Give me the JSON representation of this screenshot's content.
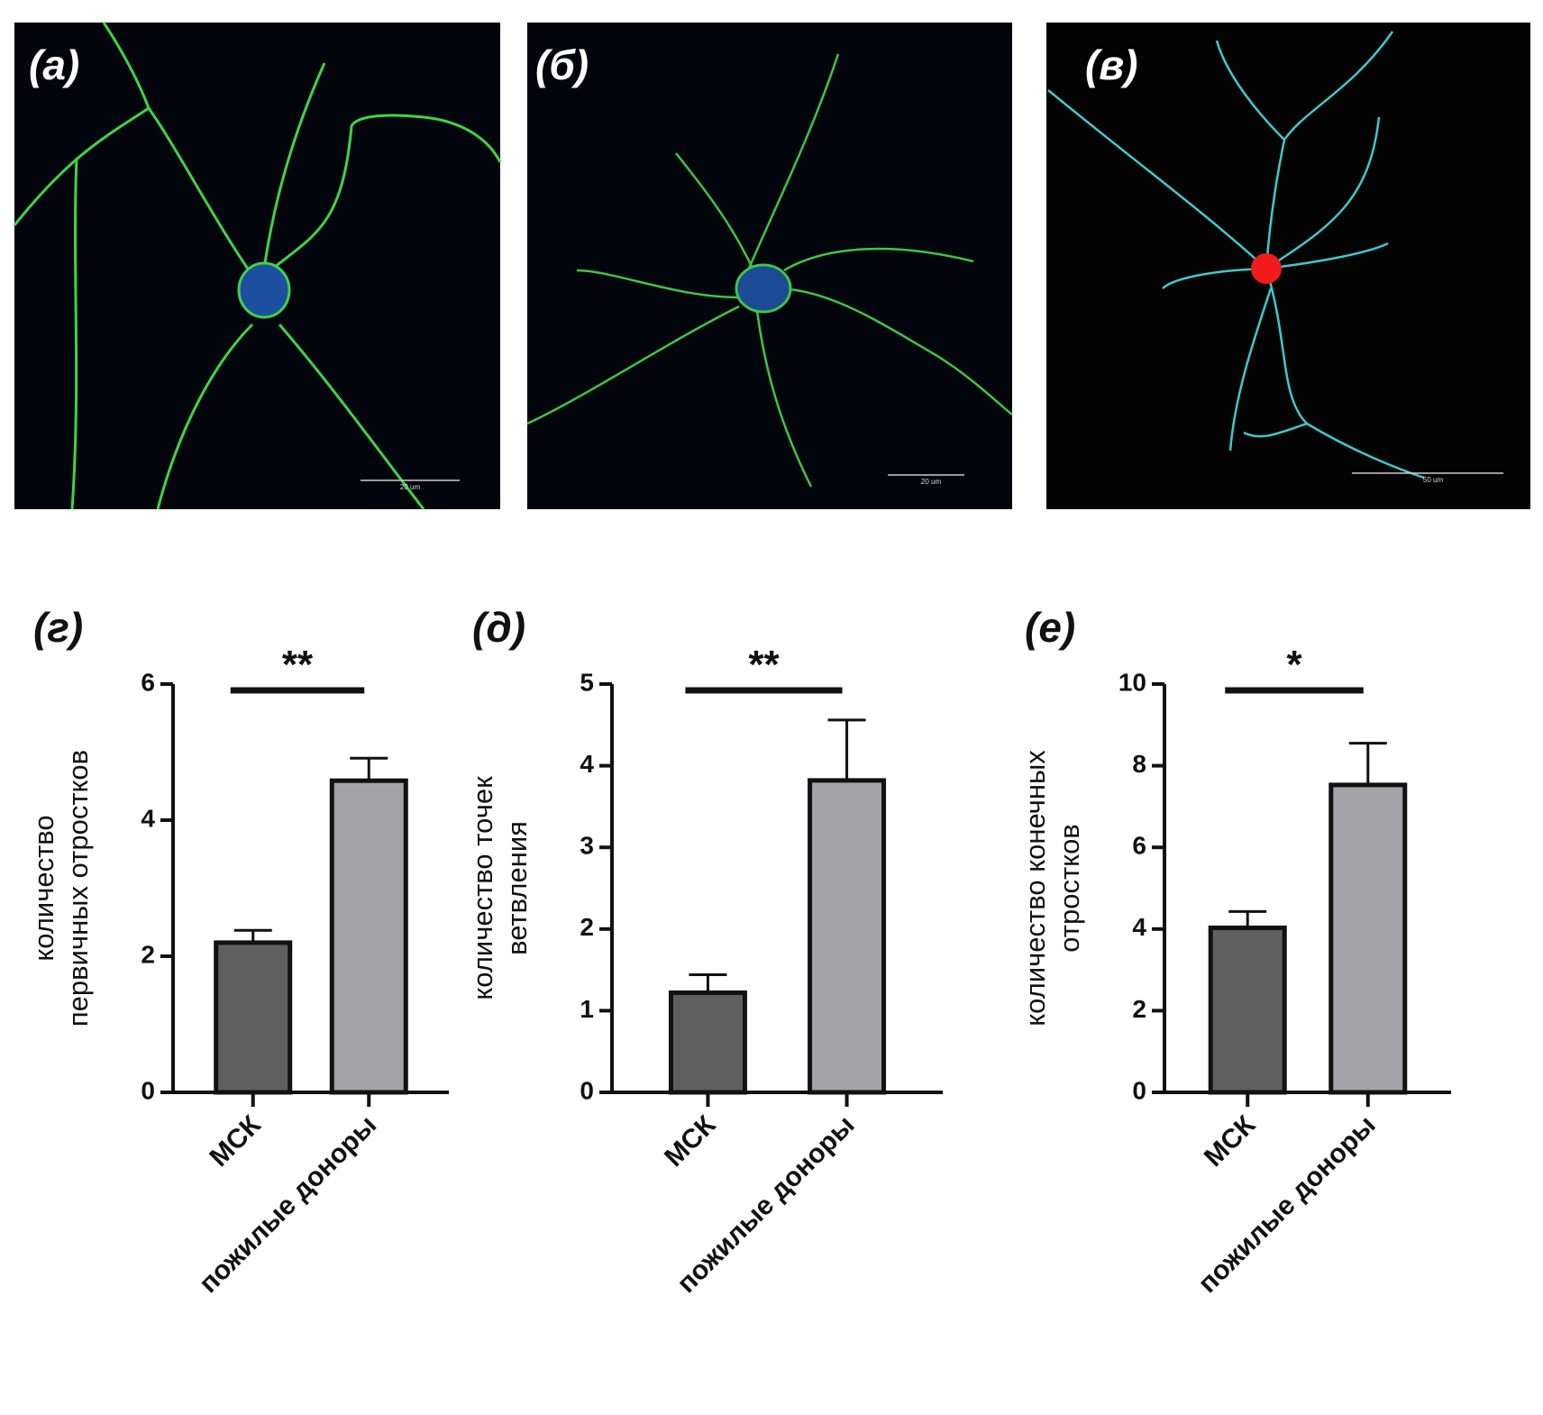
{
  "panels": [
    {
      "label": "(а)",
      "scale_bar": "20 um"
    },
    {
      "label": "(б)",
      "scale_bar": "20 um"
    },
    {
      "label": "(в)",
      "scale_bar": "50 um"
    }
  ],
  "chart_data": [
    {
      "type": "bar",
      "panel_label": "(г)",
      "ylabel": [
        "количество",
        "первичных отростков"
      ],
      "categories": [
        "МСК",
        "пожилые доноры"
      ],
      "values": [
        2.2,
        4.58
      ],
      "errors": [
        0.18,
        0.33
      ],
      "colors": [
        "#5f5f5f",
        "#a3a2a6"
      ],
      "ylim": [
        0,
        6
      ],
      "yticks": [
        0,
        2,
        4,
        6
      ],
      "significance": "**"
    },
    {
      "type": "bar",
      "panel_label": "(д)",
      "ylabel": [
        "количество точек",
        "ветвления"
      ],
      "categories": [
        "МСК",
        "пожилые доноры"
      ],
      "values": [
        1.22,
        3.82
      ],
      "errors": [
        0.22,
        0.74
      ],
      "colors": [
        "#5f5f5f",
        "#a3a2a6"
      ],
      "ylim": [
        0,
        5
      ],
      "yticks": [
        0,
        1,
        2,
        3,
        4,
        5
      ],
      "significance": "**"
    },
    {
      "type": "bar",
      "panel_label": "(е)",
      "ylabel": [
        "количество конечных",
        "отростков"
      ],
      "categories": [
        "МСК",
        "пожилые доноры"
      ],
      "values": [
        4.03,
        7.53
      ],
      "errors": [
        0.4,
        1.02
      ],
      "colors": [
        "#5f5f5f",
        "#a3a2a6"
      ],
      "ylim": [
        0,
        10
      ],
      "yticks": [
        0,
        2,
        4,
        6,
        8,
        10
      ],
      "significance": "*"
    }
  ]
}
